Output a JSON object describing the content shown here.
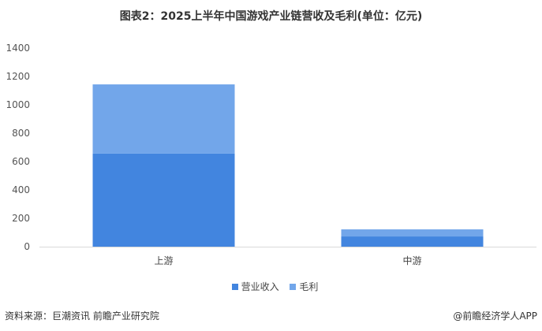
{
  "chart_data": {
    "type": "bar",
    "stacked": true,
    "title": "图表2：2025上半年中国游戏产业链营收及毛利(单位：亿元)",
    "categories": [
      "上游",
      "中游"
    ],
    "series": [
      {
        "name": "营业收入",
        "values": [
          656,
          72
        ],
        "color": "#4285df"
      },
      {
        "name": "毛利",
        "values": [
          488,
          50
        ],
        "color": "#72a6ea"
      }
    ],
    "ylim": [
      0,
      1400
    ],
    "yticks": [
      0,
      200,
      400,
      600,
      800,
      1000,
      1200,
      1400
    ],
    "grid": false,
    "legend": "bottom"
  },
  "footer": {
    "source": "资料来源：巨潮资讯 前瞻产业研究院",
    "brand": "@前瞻经济学人APP"
  }
}
